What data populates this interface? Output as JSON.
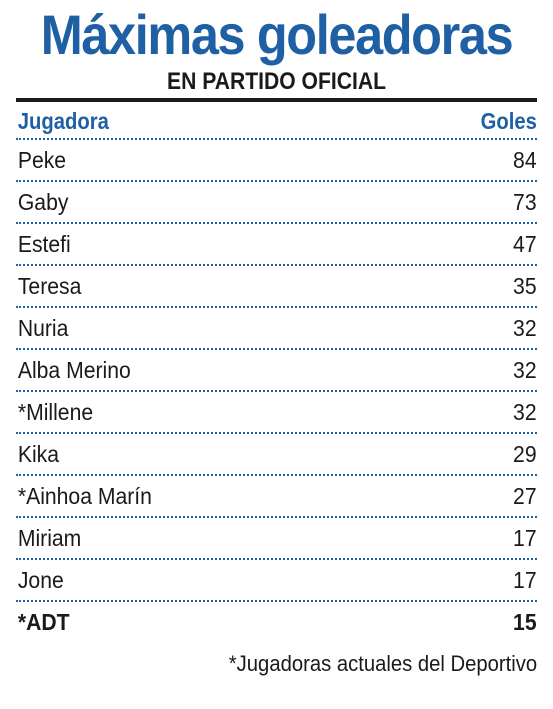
{
  "chart_data": {
    "type": "table",
    "title": "Máximas goleadoras",
    "subtitle": "EN PARTIDO OFICIAL",
    "columns": [
      "Jugadora",
      "Goles"
    ],
    "rows": [
      {
        "name": "Peke",
        "goals": 84
      },
      {
        "name": "Gaby",
        "goals": 73
      },
      {
        "name": "Estefi",
        "goals": 47
      },
      {
        "name": "Teresa",
        "goals": 35
      },
      {
        "name": "Nuria",
        "goals": 32
      },
      {
        "name": "Alba Merino",
        "goals": 32
      },
      {
        "name": "*Millene",
        "goals": 32
      },
      {
        "name": "Kika",
        "goals": 29
      },
      {
        "name": "*Ainhoa Marín",
        "goals": 27
      },
      {
        "name": "Miriam",
        "goals": 17
      },
      {
        "name": "Jone",
        "goals": 17
      },
      {
        "name": "*ADT",
        "goals": 15
      }
    ],
    "footnote": "*Jugadoras actuales del Deportivo",
    "accent_color": "#1f5fa4"
  }
}
